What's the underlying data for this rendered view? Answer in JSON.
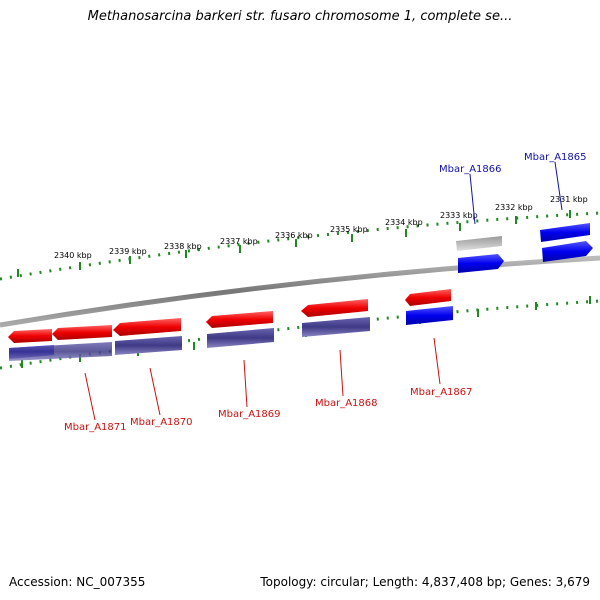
{
  "title": "Methanosarcina barkeri str. fusaro chromosome 1, complete se...",
  "footer": {
    "accession": "Accession: NC_007355",
    "summary": "Topology: circular; Length: 4,837,408 bp; Genes: 3,679"
  },
  "colors": {
    "forward_cds": "#ee1111",
    "reverse_cds": "#1111ee",
    "forward_gene": "#bbbbbb",
    "reverse_gene": "#4a4490",
    "backbone": "#888888",
    "ticks": "#228822",
    "forward_label": "#1111aa",
    "reverse_label": "#cc1111"
  },
  "ruler_labels": [
    "2340 kbp",
    "2339 kbp",
    "2338 kbp",
    "2337 kbp",
    "2336 kbp",
    "2335 kbp",
    "2334 kbp",
    "2333 kbp",
    "2332 kbp",
    "2331 kbp"
  ],
  "genes": [
    {
      "name": "Mbar_A1871",
      "strand": "reverse"
    },
    {
      "name": "Mbar_A1870",
      "strand": "reverse"
    },
    {
      "name": "Mbar_A1869",
      "strand": "reverse"
    },
    {
      "name": "Mbar_A1868",
      "strand": "reverse"
    },
    {
      "name": "Mbar_A1867",
      "strand": "reverse"
    },
    {
      "name": "Mbar_A1866",
      "strand": "forward"
    },
    {
      "name": "Mbar_A1865",
      "strand": "forward"
    }
  ]
}
